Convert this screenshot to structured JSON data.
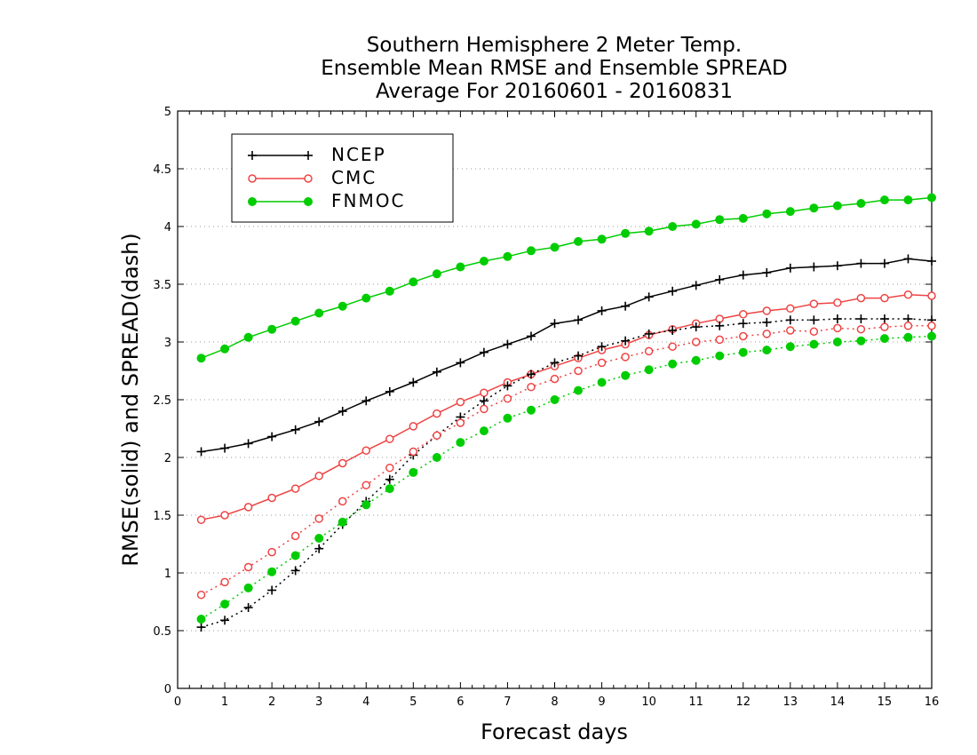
{
  "chart_data": {
    "type": "line",
    "title": [
      "Southern Hemisphere 2 Meter Temp.",
      "Ensemble Mean RMSE and Ensemble SPREAD",
      "Average For 20160601 - 20160831"
    ],
    "xlabel": "Forecast days",
    "ylabel": "RMSE(solid)  and  SPREAD(dash)",
    "xlim": [
      0,
      16
    ],
    "ylim": [
      0,
      5
    ],
    "xticks": [
      0,
      1,
      2,
      3,
      4,
      5,
      6,
      7,
      8,
      9,
      10,
      11,
      12,
      13,
      14,
      15,
      16
    ],
    "yticks": [
      0,
      0.5,
      1,
      1.5,
      2,
      2.5,
      3,
      3.5,
      4,
      4.5,
      5
    ],
    "x": [
      0.5,
      1,
      1.5,
      2,
      2.5,
      3,
      3.5,
      4,
      4.5,
      5,
      5.5,
      6,
      6.5,
      7,
      7.5,
      8,
      8.5,
      9,
      9.5,
      10,
      10.5,
      11,
      11.5,
      12,
      12.5,
      13,
      13.5,
      14,
      14.5,
      15,
      15.5,
      16
    ],
    "grid": "dotted horizontal",
    "legend_position": "top-left",
    "series": [
      {
        "name": "NCEP",
        "metric": "RMSE",
        "style": "solid",
        "marker": "plus",
        "color": "#000000",
        "values": [
          2.05,
          2.08,
          2.12,
          2.18,
          2.24,
          2.31,
          2.4,
          2.49,
          2.57,
          2.65,
          2.74,
          2.82,
          2.91,
          2.98,
          3.05,
          3.16,
          3.19,
          3.27,
          3.31,
          3.39,
          3.44,
          3.49,
          3.54,
          3.58,
          3.6,
          3.64,
          3.65,
          3.66,
          3.68,
          3.68,
          3.72,
          3.7
        ]
      },
      {
        "name": "CMC",
        "metric": "RMSE",
        "style": "solid",
        "marker": "circle-open",
        "color": "#ee4444",
        "values": [
          1.46,
          1.5,
          1.57,
          1.65,
          1.73,
          1.84,
          1.95,
          2.06,
          2.16,
          2.27,
          2.38,
          2.48,
          2.56,
          2.65,
          2.72,
          2.79,
          2.86,
          2.93,
          2.98,
          3.06,
          3.11,
          3.16,
          3.2,
          3.24,
          3.27,
          3.29,
          3.33,
          3.34,
          3.38,
          3.38,
          3.41,
          3.4
        ]
      },
      {
        "name": "FNMOC",
        "metric": "RMSE",
        "style": "solid",
        "marker": "circle-filled",
        "color": "#00cc00",
        "values": [
          2.86,
          2.94,
          3.04,
          3.11,
          3.18,
          3.25,
          3.31,
          3.38,
          3.44,
          3.52,
          3.59,
          3.65,
          3.7,
          3.74,
          3.79,
          3.82,
          3.87,
          3.89,
          3.94,
          3.96,
          4.0,
          4.02,
          4.06,
          4.07,
          4.11,
          4.13,
          4.16,
          4.18,
          4.2,
          4.23,
          4.23,
          4.25
        ]
      },
      {
        "name": "NCEP",
        "metric": "SPREAD",
        "style": "dotted",
        "marker": "plus",
        "color": "#000000",
        "values": [
          0.53,
          0.59,
          0.7,
          0.85,
          1.02,
          1.21,
          1.42,
          1.62,
          1.81,
          2.02,
          2.19,
          2.35,
          2.49,
          2.62,
          2.72,
          2.82,
          2.88,
          2.96,
          3.01,
          3.07,
          3.1,
          3.13,
          3.14,
          3.16,
          3.17,
          3.19,
          3.19,
          3.2,
          3.2,
          3.2,
          3.2,
          3.19
        ]
      },
      {
        "name": "CMC",
        "metric": "SPREAD",
        "style": "dotted",
        "marker": "circle-open",
        "color": "#ee4444",
        "values": [
          0.81,
          0.92,
          1.05,
          1.18,
          1.32,
          1.47,
          1.62,
          1.76,
          1.91,
          2.05,
          2.19,
          2.3,
          2.42,
          2.51,
          2.61,
          2.68,
          2.75,
          2.82,
          2.87,
          2.92,
          2.96,
          3.0,
          3.02,
          3.05,
          3.07,
          3.1,
          3.09,
          3.12,
          3.11,
          3.13,
          3.14,
          3.14
        ]
      },
      {
        "name": "FNMOC",
        "metric": "SPREAD",
        "style": "dotted",
        "marker": "circle-filled",
        "color": "#00cc00",
        "values": [
          0.6,
          0.73,
          0.87,
          1.01,
          1.15,
          1.3,
          1.44,
          1.59,
          1.73,
          1.87,
          2.0,
          2.13,
          2.23,
          2.34,
          2.41,
          2.5,
          2.58,
          2.65,
          2.71,
          2.76,
          2.81,
          2.84,
          2.88,
          2.91,
          2.93,
          2.96,
          2.98,
          3.0,
          3.01,
          3.03,
          3.04,
          3.05
        ]
      }
    ],
    "legend": [
      {
        "name": "NCEP",
        "marker": "plus",
        "color": "#000000"
      },
      {
        "name": "CMC",
        "marker": "circle-open",
        "color": "#ee4444"
      },
      {
        "name": "FNMOC",
        "marker": "circle-filled",
        "color": "#00cc00"
      }
    ]
  }
}
